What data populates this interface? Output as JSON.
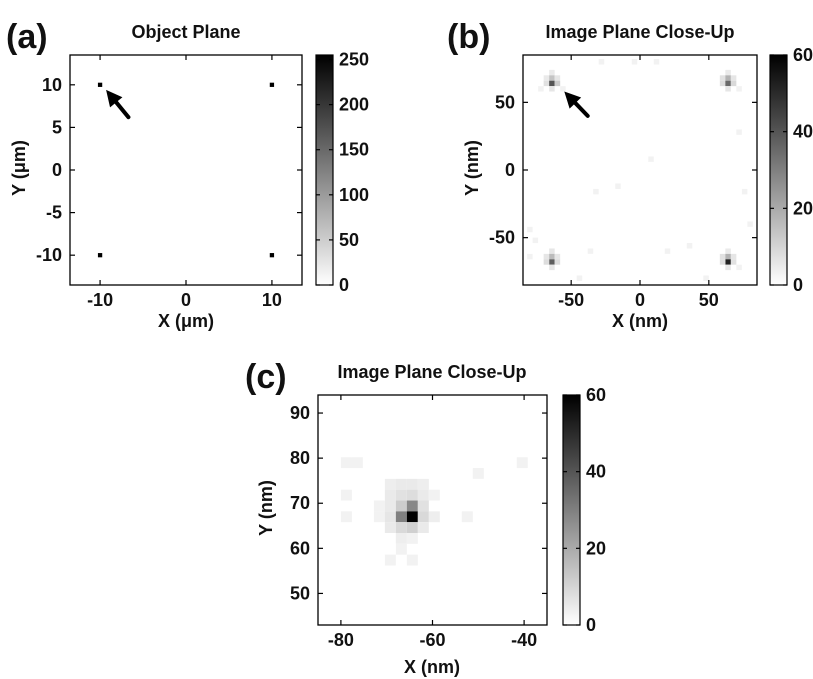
{
  "chart_data": [
    {
      "type": "heatmap",
      "panel_label": "(a)",
      "title": "Object Plane",
      "xlabel": "X (μm)",
      "ylabel": "Y (μm)",
      "xlim": [
        -13.5,
        13.5
      ],
      "ylim": [
        -13.5,
        13.5
      ],
      "xticks": [
        -10,
        0,
        10
      ],
      "yticks": [
        -10,
        -5,
        0,
        5,
        10
      ],
      "xtick_labels": [
        "-10",
        "0",
        "10"
      ],
      "ytick_labels": [
        "-10",
        "-5",
        "0",
        "5",
        "10"
      ],
      "colorbar": {
        "range": [
          0,
          255
        ],
        "ticks": [
          0,
          50,
          100,
          150,
          200,
          250
        ],
        "tick_labels": [
          "0",
          "50",
          "100",
          "150",
          "200",
          "250"
        ]
      },
      "cell_size": 0.5,
      "cells": [
        [
          -10,
          10,
          255
        ],
        [
          10,
          10,
          255
        ],
        [
          -10,
          -10,
          255
        ],
        [
          10,
          -10,
          255
        ]
      ],
      "arrow": {
        "tip": [
          -9.3,
          9.4
        ],
        "tail": [
          -6.7,
          6.2
        ]
      }
    },
    {
      "type": "heatmap",
      "panel_label": "(b)",
      "title": "Image Plane Close-Up",
      "xlabel": "X (nm)",
      "ylabel": "Y (nm)",
      "xlim": [
        -85,
        85
      ],
      "ylim": [
        -85,
        85
      ],
      "xticks": [
        -50,
        0,
        50
      ],
      "yticks": [
        -50,
        0,
        50
      ],
      "xtick_labels": [
        "-50",
        "0",
        "50"
      ],
      "ytick_labels": [
        "-50",
        "0",
        "50"
      ],
      "colorbar": {
        "range": [
          0,
          60
        ],
        "ticks": [
          0,
          20,
          40,
          60
        ],
        "tick_labels": [
          "0",
          "20",
          "40",
          "60"
        ]
      },
      "cell_size": 4,
      "cells": [
        [
          -64,
          72,
          5
        ],
        [
          -68,
          68,
          5
        ],
        [
          -64,
          68,
          14
        ],
        [
          -60,
          68,
          6
        ],
        [
          -68,
          64,
          7
        ],
        [
          -64,
          64,
          40
        ],
        [
          -60,
          64,
          12
        ],
        [
          -64,
          60,
          6
        ],
        [
          -72,
          60,
          3
        ],
        [
          -56,
          60,
          3
        ],
        [
          64,
          72,
          5
        ],
        [
          60,
          68,
          7
        ],
        [
          64,
          68,
          18
        ],
        [
          68,
          68,
          6
        ],
        [
          60,
          64,
          8
        ],
        [
          64,
          64,
          35
        ],
        [
          68,
          64,
          9
        ],
        [
          64,
          60,
          6
        ],
        [
          72,
          60,
          3
        ],
        [
          -64,
          -60,
          6
        ],
        [
          -68,
          -64,
          6
        ],
        [
          -64,
          -64,
          16
        ],
        [
          -60,
          -64,
          6
        ],
        [
          -64,
          -68,
          38
        ],
        [
          -68,
          -68,
          8
        ],
        [
          -60,
          -68,
          8
        ],
        [
          -64,
          -72,
          6
        ],
        [
          64,
          -60,
          5
        ],
        [
          60,
          -64,
          7
        ],
        [
          64,
          -64,
          18
        ],
        [
          68,
          -64,
          6
        ],
        [
          64,
          -68,
          52
        ],
        [
          60,
          -68,
          8
        ],
        [
          68,
          -68,
          7
        ],
        [
          64,
          -72,
          6
        ],
        [
          72,
          -72,
          3
        ],
        [
          -28,
          80,
          3
        ],
        [
          -4,
          80,
          3
        ],
        [
          12,
          80,
          3
        ],
        [
          -80,
          -44,
          3
        ],
        [
          -76,
          -52,
          3
        ],
        [
          -80,
          -64,
          3
        ],
        [
          -44,
          -80,
          3
        ],
        [
          -36,
          -60,
          3
        ],
        [
          76,
          -16,
          3
        ],
        [
          80,
          -40,
          3
        ],
        [
          72,
          28,
          3
        ],
        [
          -16,
          -12,
          3
        ],
        [
          -32,
          -16,
          3
        ],
        [
          8,
          8,
          3
        ],
        [
          20,
          -60,
          3
        ],
        [
          36,
          -56,
          3
        ],
        [
          48,
          -80,
          3
        ]
      ],
      "arrow": {
        "tip": [
          -55,
          58
        ],
        "tail": [
          -38,
          40
        ]
      }
    },
    {
      "type": "heatmap",
      "panel_label": "(c)",
      "title": "Image Plane Close-Up",
      "xlabel": "X (nm)",
      "ylabel": "Y (nm)",
      "xlim": [
        -85,
        -35
      ],
      "ylim": [
        43,
        94
      ],
      "xticks": [
        -80,
        -60,
        -40
      ],
      "yticks": [
        50,
        60,
        70,
        80,
        90
      ],
      "xtick_labels": [
        "-80",
        "-60",
        "-40"
      ],
      "ytick_labels": [
        "50",
        "60",
        "70",
        "80",
        "90"
      ],
      "colorbar": {
        "range": [
          0,
          60
        ],
        "ticks": [
          0,
          20,
          40,
          60
        ],
        "tick_labels": [
          "0",
          "20",
          "40",
          "60"
        ]
      },
      "cell_size": 2.4,
      "cells": [
        [
          -78.8,
          79,
          3
        ],
        [
          -76.4,
          79,
          3
        ],
        [
          -40.4,
          79,
          3
        ],
        [
          -50,
          76.6,
          3
        ],
        [
          -69.2,
          74.2,
          4
        ],
        [
          -66.8,
          74.2,
          5
        ],
        [
          -64.4,
          74.2,
          5
        ],
        [
          -62,
          74.2,
          4
        ],
        [
          -78.8,
          71.8,
          3
        ],
        [
          -69.2,
          71.8,
          5
        ],
        [
          -66.8,
          71.8,
          7
        ],
        [
          -64.4,
          71.8,
          8
        ],
        [
          -62,
          71.8,
          5
        ],
        [
          -59.6,
          71.8,
          3
        ],
        [
          -71.6,
          69.4,
          3
        ],
        [
          -69.2,
          69.4,
          5
        ],
        [
          -66.8,
          69.4,
          12
        ],
        [
          -64.4,
          69.4,
          28
        ],
        [
          -62,
          69.4,
          7
        ],
        [
          -78.8,
          67,
          3
        ],
        [
          -71.6,
          67,
          3
        ],
        [
          -69.2,
          67,
          6
        ],
        [
          -66.8,
          67,
          30
        ],
        [
          -64.4,
          67,
          60
        ],
        [
          -62,
          67,
          9
        ],
        [
          -59.6,
          67,
          4
        ],
        [
          -52.4,
          67,
          3
        ],
        [
          -69.2,
          64.6,
          5
        ],
        [
          -66.8,
          64.6,
          9
        ],
        [
          -64.4,
          64.6,
          11
        ],
        [
          -62,
          64.6,
          5
        ],
        [
          -66.8,
          62.2,
          4
        ],
        [
          -64.4,
          62.2,
          3
        ],
        [
          -66.8,
          59.8,
          3
        ],
        [
          -69.2,
          57.4,
          3
        ],
        [
          -64.4,
          57.4,
          3
        ]
      ]
    }
  ]
}
